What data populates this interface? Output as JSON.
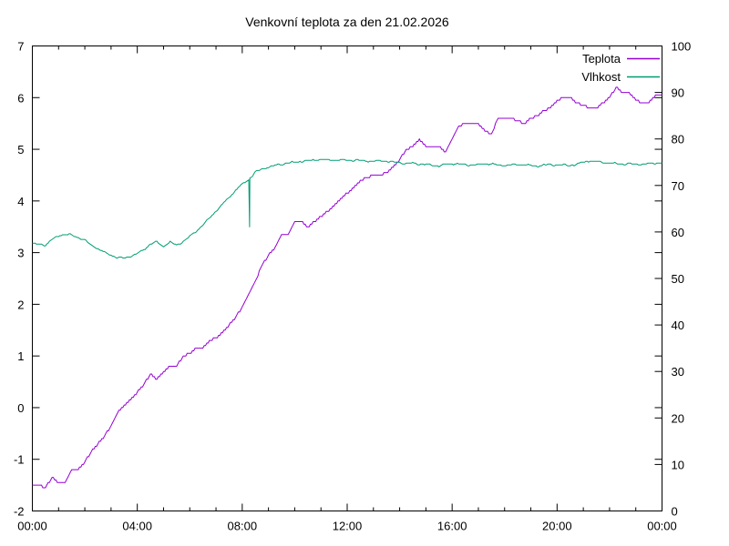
{
  "title": "Venkovní teplota za den 21.02.2026",
  "legend": [
    {
      "label": "Teplota",
      "color": "#9400d3"
    },
    {
      "label": "Vlhkost",
      "color": "#009e73"
    }
  ],
  "axes": {
    "x": {
      "tick_labels": [
        "00:00",
        "04:00",
        "08:00",
        "12:00",
        "16:00",
        "20:00",
        "00:00"
      ],
      "major_hours": [
        0,
        4,
        8,
        12,
        16,
        20,
        24
      ],
      "minor_every_hours": 1,
      "range_hours": [
        0,
        24
      ]
    },
    "y_left": {
      "min": -2,
      "max": 7,
      "ticks": [
        -2,
        -1,
        0,
        1,
        2,
        3,
        4,
        5,
        6,
        7
      ]
    },
    "y_right": {
      "min": 0,
      "max": 100,
      "ticks": [
        0,
        10,
        20,
        30,
        40,
        50,
        60,
        70,
        80,
        90,
        100
      ]
    }
  },
  "chart_data": {
    "type": "line",
    "title": "Venkovní teplota za den 21.02.2026",
    "x_unit": "hours",
    "x_start": 0,
    "x_step": 0.25,
    "grid": false,
    "legend_position": "top-right-inside",
    "series": [
      {
        "name": "Teplota",
        "axis": "left",
        "unit": "°C",
        "color": "#9400d3",
        "quantize": 0.05,
        "values": [
          -1.5,
          -1.5,
          -1.55,
          -1.35,
          -1.45,
          -1.45,
          -1.2,
          -1.2,
          -1.05,
          -0.85,
          -0.7,
          -0.55,
          -0.35,
          -0.1,
          0.05,
          0.15,
          0.3,
          0.45,
          0.65,
          0.55,
          0.7,
          0.8,
          0.8,
          1.0,
          1.05,
          1.15,
          1.15,
          1.3,
          1.35,
          1.45,
          1.6,
          1.75,
          1.95,
          2.2,
          2.45,
          2.75,
          2.95,
          3.1,
          3.35,
          3.35,
          3.6,
          3.6,
          3.5,
          3.6,
          3.7,
          3.8,
          3.9,
          4.05,
          4.15,
          4.25,
          4.4,
          4.45,
          4.5,
          4.5,
          4.55,
          4.65,
          4.8,
          5.0,
          5.05,
          5.2,
          5.05,
          5.05,
          5.05,
          4.95,
          5.2,
          5.45,
          5.5,
          5.5,
          5.5,
          5.35,
          5.3,
          5.6,
          5.6,
          5.6,
          5.55,
          5.5,
          5.6,
          5.65,
          5.75,
          5.8,
          5.95,
          6.0,
          6.0,
          5.9,
          5.85,
          5.8,
          5.8,
          5.9,
          6.0,
          6.2,
          6.1,
          6.1,
          5.95,
          5.9,
          5.9,
          6.05,
          6.05
        ]
      },
      {
        "name": "Vlhkost",
        "axis": "right",
        "unit": "%",
        "color": "#009e73",
        "quantize": 0.2,
        "jitter": true,
        "dropout": {
          "hour": 8.28,
          "value": 61.0
        },
        "values": [
          57.5,
          57.3,
          57.2,
          58.3,
          59.2,
          59.5,
          59.3,
          58.8,
          58.2,
          57.2,
          56.4,
          55.6,
          55.0,
          54.5,
          54.4,
          54.8,
          55.3,
          56.2,
          57.4,
          57.8,
          56.9,
          57.8,
          57.2,
          58.0,
          59.0,
          60.2,
          61.5,
          63.0,
          64.5,
          66.0,
          67.5,
          69.0,
          70.3,
          71.3,
          72.8,
          73.5,
          74.0,
          74.3,
          74.6,
          74.8,
          75.0,
          75.2,
          75.3,
          75.5,
          75.6,
          75.5,
          75.5,
          75.5,
          75.5,
          75.4,
          75.4,
          75.3,
          75.2,
          75.3,
          75.2,
          75.0,
          74.9,
          74.7,
          74.8,
          74.6,
          74.5,
          74.4,
          74.2,
          74.5,
          74.7,
          74.6,
          74.5,
          74.4,
          74.5,
          74.7,
          74.6,
          74.4,
          74.3,
          74.4,
          74.5,
          74.4,
          74.3,
          74.2,
          74.4,
          74.5,
          74.4,
          74.4,
          74.3,
          74.5,
          75.0,
          75.3,
          75.1,
          74.9,
          74.8,
          74.7,
          74.6,
          74.7,
          74.5,
          74.6,
          74.7,
          74.8,
          74.8
        ]
      }
    ]
  }
}
